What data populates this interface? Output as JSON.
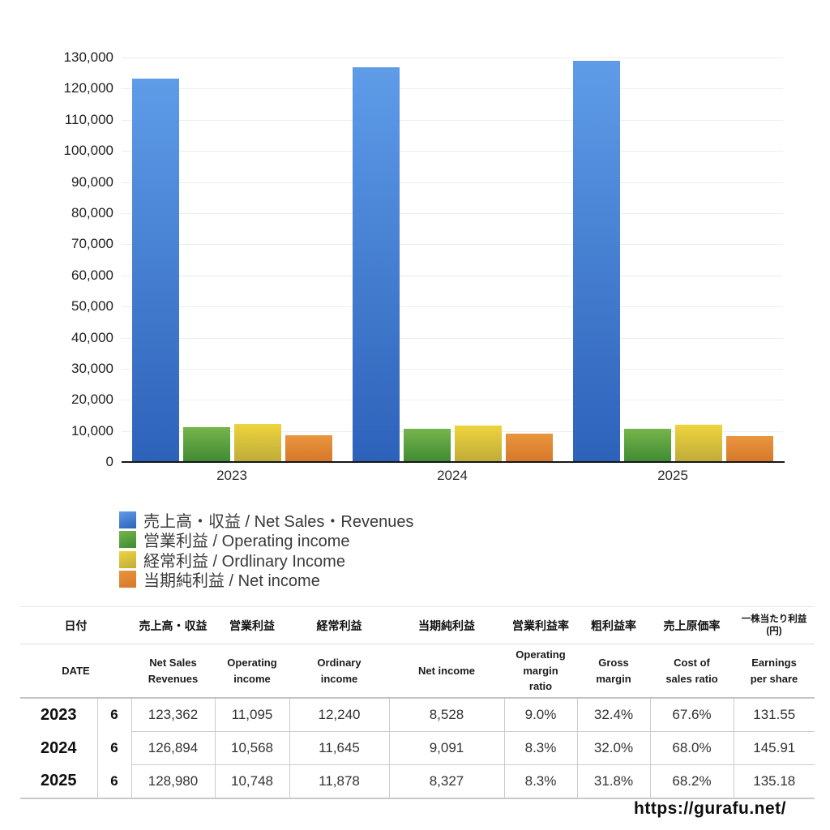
{
  "chart_data": {
    "type": "bar",
    "title": "",
    "x": [
      "2023",
      "2024",
      "2025"
    ],
    "series": [
      {
        "name": "売上高・収益 / Net Sales・Revenues",
        "values": [
          123362,
          126894,
          128980
        ],
        "color_top": "#5e9ce8",
        "color_bottom": "#2d62ba"
      },
      {
        "name": "営業利益 / Operating income",
        "values": [
          11095,
          10568,
          10748
        ],
        "color_top": "#76b54b",
        "color_bottom": "#3f8a33"
      },
      {
        "name": "経常利益 / Ordlinary Income",
        "values": [
          12240,
          11645,
          11878
        ],
        "color_top": "#eed43c",
        "color_bottom": "#bfab3a"
      },
      {
        "name": "当期純利益 / Net income",
        "values": [
          8528,
          9091,
          8327
        ],
        "color_top": "#e9953f",
        "color_bottom": "#d67729"
      }
    ],
    "ylim": [
      0,
      130000
    ],
    "ytick_step": 10000,
    "grid": true,
    "legend_position": "bottom-left",
    "gridline_color": "#ededed",
    "axis_color": "#161616"
  },
  "table": {
    "header_jp": [
      "日付",
      "売上高・収益",
      "営業利益",
      "経常利益",
      "当期純利益",
      "営業利益率",
      "粗利益率",
      "売上原価率",
      "一株当たり利益\n(円)"
    ],
    "header_en": [
      "DATE",
      "Net Sales\nRevenues",
      "Operating\nincome",
      "Ordinary\nincome",
      "Net income",
      "Operating\nmargin\nratio",
      "Gross\nmargin",
      "Cost of\nsales ratio",
      "Earnings\nper share"
    ],
    "rows": [
      {
        "year": "2023",
        "month": "6",
        "values": [
          "123,362",
          "11,095",
          "12,240",
          "8,528",
          "9.0%",
          "32.4%",
          "67.6%",
          "131.55"
        ]
      },
      {
        "year": "2024",
        "month": "6",
        "values": [
          "126,894",
          "10,568",
          "11,645",
          "9,091",
          "8.3%",
          "32.0%",
          "68.0%",
          "145.91"
        ]
      },
      {
        "year": "2025",
        "month": "6",
        "values": [
          "128,980",
          "10,748",
          "11,878",
          "8,327",
          "8.3%",
          "31.8%",
          "68.2%",
          "135.18"
        ]
      }
    ]
  },
  "footer": {
    "url": "https://gurafu.net/"
  }
}
